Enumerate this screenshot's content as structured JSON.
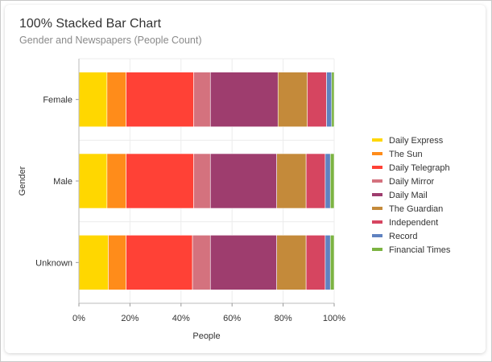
{
  "header": {
    "title": "100% Stacked Bar Chart",
    "subtitle": "Gender and Newspapers (People Count)"
  },
  "chart_data": {
    "type": "bar",
    "orientation": "horizontal",
    "stacking": "percent",
    "xlabel": "People",
    "ylabel": "Gender",
    "xlim": [
      0,
      100
    ],
    "x_ticks": [
      "0%",
      "20%",
      "40%",
      "60%",
      "80%",
      "100%"
    ],
    "categories": [
      "Female",
      "Male",
      "Unknown"
    ],
    "legend_position": "right",
    "series": [
      {
        "name": "Daily Express",
        "color": "#FFD700",
        "values": [
          11,
          11,
          11.5
        ]
      },
      {
        "name": "The Sun",
        "color": "#FF8C1A",
        "values": [
          7.5,
          7.5,
          7
        ]
      },
      {
        "name": "Daily Telegraph",
        "color": "#FF4136",
        "values": [
          26.5,
          26.5,
          26
        ]
      },
      {
        "name": "Daily Mirror",
        "color": "#D4727E",
        "values": [
          6.5,
          6.5,
          7
        ]
      },
      {
        "name": "Daily Mail",
        "color": "#9E3D6E",
        "values": [
          26.5,
          26,
          26
        ]
      },
      {
        "name": "The Guardian",
        "color": "#C48A3A",
        "values": [
          11.5,
          11.5,
          11.5
        ]
      },
      {
        "name": "Independent",
        "color": "#D64560",
        "values": [
          7.5,
          7.5,
          7.5
        ]
      },
      {
        "name": "Record",
        "color": "#5F82C0",
        "values": [
          2,
          2,
          2
        ]
      },
      {
        "name": "Financial Times",
        "color": "#7CB342",
        "values": [
          1,
          1.5,
          1.5
        ]
      }
    ]
  }
}
